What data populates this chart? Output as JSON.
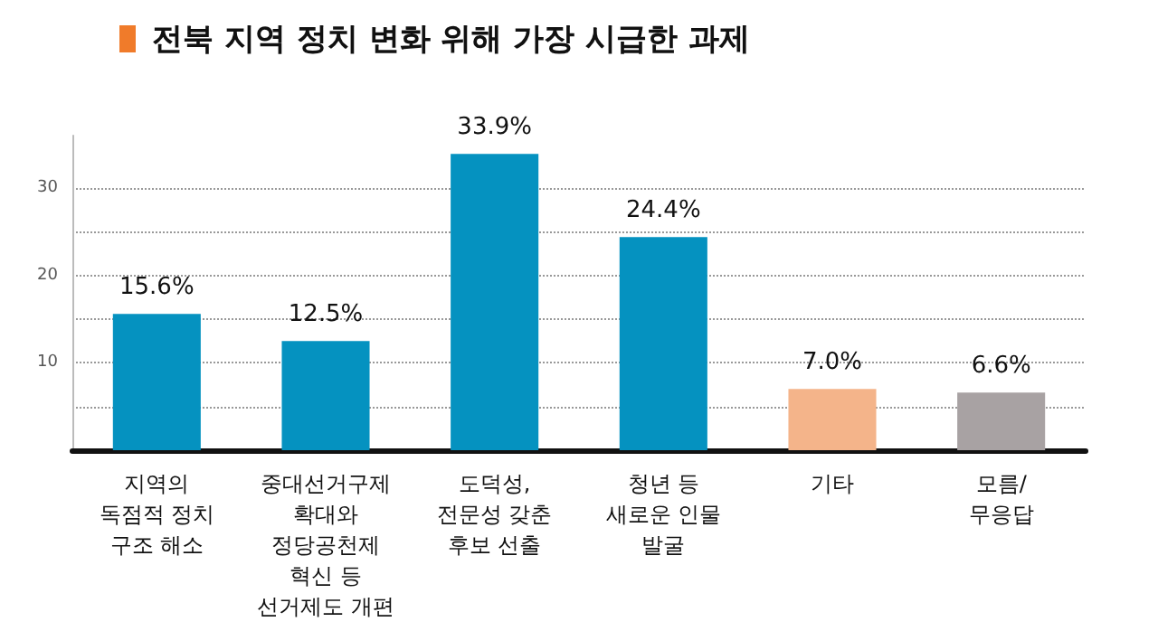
{
  "chart_data": {
    "type": "bar",
    "title": "전북 지역 정치 변화 위해 가장 시급한 과제",
    "categories": [
      "지역의\n독점적 정치\n구조 해소",
      "중대선거구제\n확대와\n정당공천제\n혁신 등\n선거제도 개편",
      "도덕성,\n전문성 갖춘\n후보 선출",
      "청년 등\n새로운 인물\n발굴",
      "기타",
      "모름/\n무응답"
    ],
    "values": [
      15.6,
      12.5,
      33.9,
      24.4,
      7.0,
      6.6
    ],
    "colors": [
      "#0592c0",
      "#0592c0",
      "#0592c0",
      "#0592c0",
      "#f4b48a",
      "#a8a2a3"
    ],
    "value_labels": [
      "15.6%",
      "12.5%",
      "33.9%",
      "24.4%",
      "7.0%",
      "6.6%"
    ],
    "ylim": [
      0,
      36
    ],
    "yticks": [
      {
        "value": 5,
        "label": null
      },
      10,
      {
        "value": 15,
        "label": null
      },
      20,
      {
        "value": 25,
        "label": null
      },
      30
    ],
    "grid": "y"
  }
}
